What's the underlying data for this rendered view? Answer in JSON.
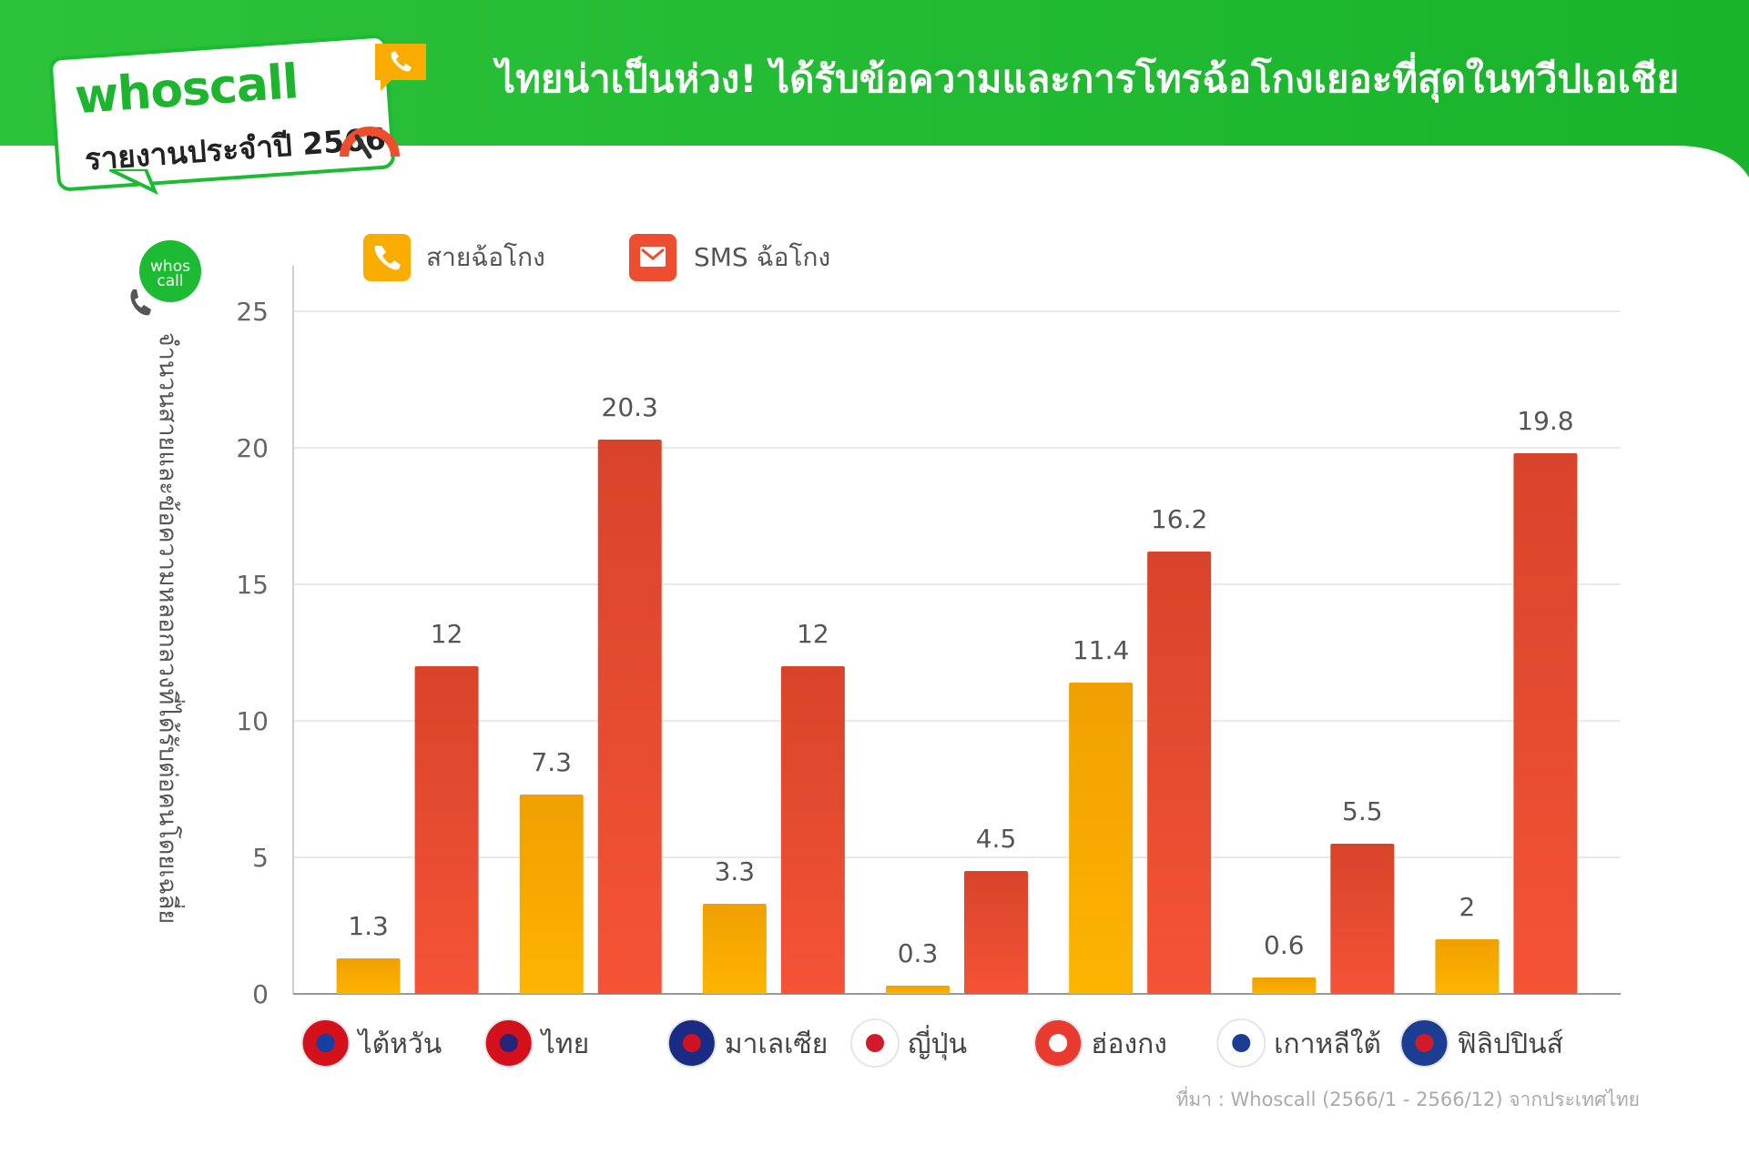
{
  "header": {
    "title": "ไทยน่าเป็นห่วง! ได้รับข้อความและการโทรฉ้อโกงเยอะที่สุดในทวีปเอเชีย",
    "logo_brand": "whoscall",
    "logo_subtitle": "รายงานประจำปี 2566"
  },
  "side_badge": {
    "text_line1": "whos",
    "text_line2": "call"
  },
  "colors": {
    "green": "#1dbb33",
    "call_series": "#fbac00",
    "sms_series": "#ef4d2f"
  },
  "chart_data": {
    "type": "bar",
    "ylabel": "จำนวนสายและข้อความหลอกลวงที่ได้รับต่อคนโดยเฉลี่ย",
    "ylim": [
      0,
      25
    ],
    "yticks": [
      "0",
      "5",
      "10",
      "15",
      "20",
      "25"
    ],
    "grid": true,
    "legend_position": "top-left",
    "categories": [
      "ไต้หวัน",
      "ไทย",
      "มาเลเซีย",
      "ญี่ปุ่น",
      "ฮ่องกง",
      "เกาหลีใต้",
      "ฟิลิปปินส์"
    ],
    "category_flags": [
      "taiwan-flag-icon",
      "thailand-flag-icon",
      "malaysia-flag-icon",
      "japan-flag-icon",
      "hongkong-flag-icon",
      "south-korea-flag-icon",
      "philippines-flag-icon"
    ],
    "series": [
      {
        "name": "สายฉ้อโกง",
        "icon": "phone-icon",
        "values": [
          1.3,
          7.3,
          3.3,
          0.3,
          11.4,
          0.6,
          2
        ],
        "labels": [
          "1.3",
          "7.3",
          "3.3",
          "0.3",
          "11.4",
          "0.6",
          "2"
        ]
      },
      {
        "name": "SMS ฉ้อโกง",
        "icon": "mail-icon",
        "values": [
          12,
          20.3,
          12,
          4.5,
          16.2,
          5.5,
          19.8
        ],
        "labels": [
          "12",
          "20.3",
          "12",
          "4.5",
          "16.2",
          "5.5",
          "19.8"
        ]
      }
    ]
  },
  "source_note": "ที่มา : Whoscall (2566/1 - 2566/12) จากประเทศไทย"
}
